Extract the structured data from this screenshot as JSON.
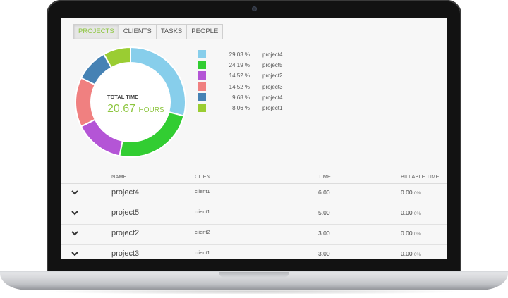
{
  "tabs": [
    {
      "label": "Projects",
      "active": true
    },
    {
      "label": "Clients",
      "active": false
    },
    {
      "label": "Tasks",
      "active": false
    },
    {
      "label": "People",
      "active": false
    }
  ],
  "total": {
    "label": "TOTAL TIME",
    "value": "20.67",
    "unit": "HOURS"
  },
  "chart_data": {
    "type": "pie",
    "donut": true,
    "slices": [
      {
        "label": "project4",
        "percent": "29.03 %",
        "value": 29.03,
        "color": "#87ceeb"
      },
      {
        "label": "project5",
        "percent": "24.19 %",
        "value": 24.19,
        "color": "#32cd32"
      },
      {
        "label": "project2",
        "percent": "14.52 %",
        "value": 14.52,
        "color": "#b455d6"
      },
      {
        "label": "project3",
        "percent": "14.52 %",
        "value": 14.52,
        "color": "#f08080"
      },
      {
        "label": "project4",
        "percent": "9.68 %",
        "value": 9.68,
        "color": "#4682b4"
      },
      {
        "label": "project1",
        "percent": "8.06 %",
        "value": 8.06,
        "color": "#9acd32"
      }
    ]
  },
  "table": {
    "headers": {
      "name": "NAME",
      "client": "CLIENT",
      "time": "TIME",
      "billable": "BILLABLE TIME"
    },
    "rows": [
      {
        "name": "project4",
        "client": "client1",
        "time": "6.00",
        "billable": "0.00",
        "billable_pct": "0%"
      },
      {
        "name": "project5",
        "client": "client1",
        "time": "5.00",
        "billable": "0.00",
        "billable_pct": "0%"
      },
      {
        "name": "project2",
        "client": "client2",
        "time": "3.00",
        "billable": "0.00",
        "billable_pct": "0%"
      },
      {
        "name": "project3",
        "client": "client1",
        "time": "3.00",
        "billable": "0.00",
        "billable_pct": "0%"
      }
    ]
  }
}
